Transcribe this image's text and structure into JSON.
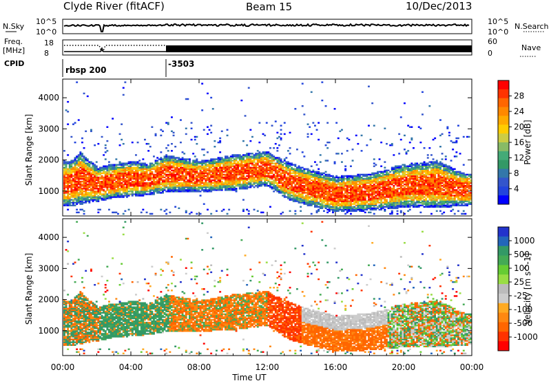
{
  "header": {
    "title": "Clyde River (fitACF)",
    "beam": "Beam 15",
    "date": "10/Dec/2013"
  },
  "top_panels": {
    "nsky_label": "N.Sky",
    "nsearch_label": "N.Search",
    "nsky_ticks": [
      "10^5",
      "10^0"
    ],
    "nsky_right_ticks": [
      "10^5",
      "10^0"
    ],
    "freq_label_line1": "Freq.",
    "freq_label_line2": "[MHz]",
    "freq_ticks": [
      "18",
      "8"
    ],
    "nave_label": "Nave",
    "nave_ticks": [
      "60",
      "0"
    ],
    "cpid_label": "CPID",
    "cpid_segments": [
      {
        "label": "rbsp 200",
        "start_hour": 0
      },
      {
        "label": "-3503",
        "start_hour": 6
      }
    ]
  },
  "chart_data": [
    {
      "type": "heatmap",
      "title": "Power",
      "xlabel": "",
      "ylabel": "Slant Range [km]",
      "x_range_hours": [
        0,
        24
      ],
      "ylim": [
        200,
        4600
      ],
      "yticks": [
        "4000",
        "3000",
        "2000",
        "1000"
      ],
      "colorbar_label": "Power [dB]",
      "colorbar_ticks": [
        "28",
        "24",
        "20",
        "16",
        "12",
        "8",
        "4"
      ],
      "colorbar_colors": [
        "#ff0000",
        "#ff3300",
        "#ff6600",
        "#ff8800",
        "#ffaa00",
        "#ffcc00",
        "#cccc44",
        "#88bb66",
        "#44aa77",
        "#339966",
        "#3377aa",
        "#3355cc",
        "#2244dd",
        "#0000ff"
      ],
      "band_profile_km": [
        {
          "hour": 0.5,
          "lower": 650,
          "upper": 1700
        },
        {
          "hour": 1.0,
          "lower": 700,
          "upper": 2000
        },
        {
          "hour": 2.0,
          "lower": 800,
          "upper": 1500
        },
        {
          "hour": 3.0,
          "lower": 900,
          "upper": 1600
        },
        {
          "hour": 4.0,
          "lower": 950,
          "upper": 1700
        },
        {
          "hour": 5.0,
          "lower": 1000,
          "upper": 1600
        },
        {
          "hour": 6.0,
          "lower": 1100,
          "upper": 1900
        },
        {
          "hour": 8.0,
          "lower": 1100,
          "upper": 1700
        },
        {
          "hour": 10.0,
          "lower": 1150,
          "upper": 1900
        },
        {
          "hour": 12.0,
          "lower": 1300,
          "upper": 2000
        },
        {
          "hour": 13.0,
          "lower": 900,
          "upper": 1700
        },
        {
          "hour": 14.0,
          "lower": 700,
          "upper": 1500
        },
        {
          "hour": 16.0,
          "lower": 450,
          "upper": 1200
        },
        {
          "hour": 18.0,
          "lower": 500,
          "upper": 1300
        },
        {
          "hour": 20.0,
          "lower": 600,
          "upper": 1600
        },
        {
          "hour": 22.0,
          "lower": 600,
          "upper": 1700
        },
        {
          "hour": 23.5,
          "lower": 650,
          "upper": 1300
        }
      ]
    },
    {
      "type": "heatmap",
      "title": "Velocity",
      "xlabel": "Time UT",
      "ylabel": "Slant Range [km]",
      "x_range_hours": [
        0,
        24
      ],
      "xticks": [
        "00:00",
        "04:00",
        "08:00",
        "12:00",
        "16:00",
        "20:00",
        "00:00"
      ],
      "ylim": [
        200,
        4600
      ],
      "yticks": [
        "4000",
        "3000",
        "2000",
        "1000"
      ],
      "colorbar_label": "Velocity [m s^-1]",
      "colorbar_ticks": [
        "1000",
        "500",
        "100",
        "25",
        "-25",
        "-100",
        "-500",
        "-1000"
      ],
      "colorbar_colors": [
        "#2233cc",
        "#2266bb",
        "#339966",
        "#44aa55",
        "#66cc33",
        "#99dd44",
        "#bbbbbb",
        "#cccccc",
        "#ffaa22",
        "#ff8811",
        "#ff6600",
        "#ff3300",
        "#ff0000"
      ]
    }
  ]
}
